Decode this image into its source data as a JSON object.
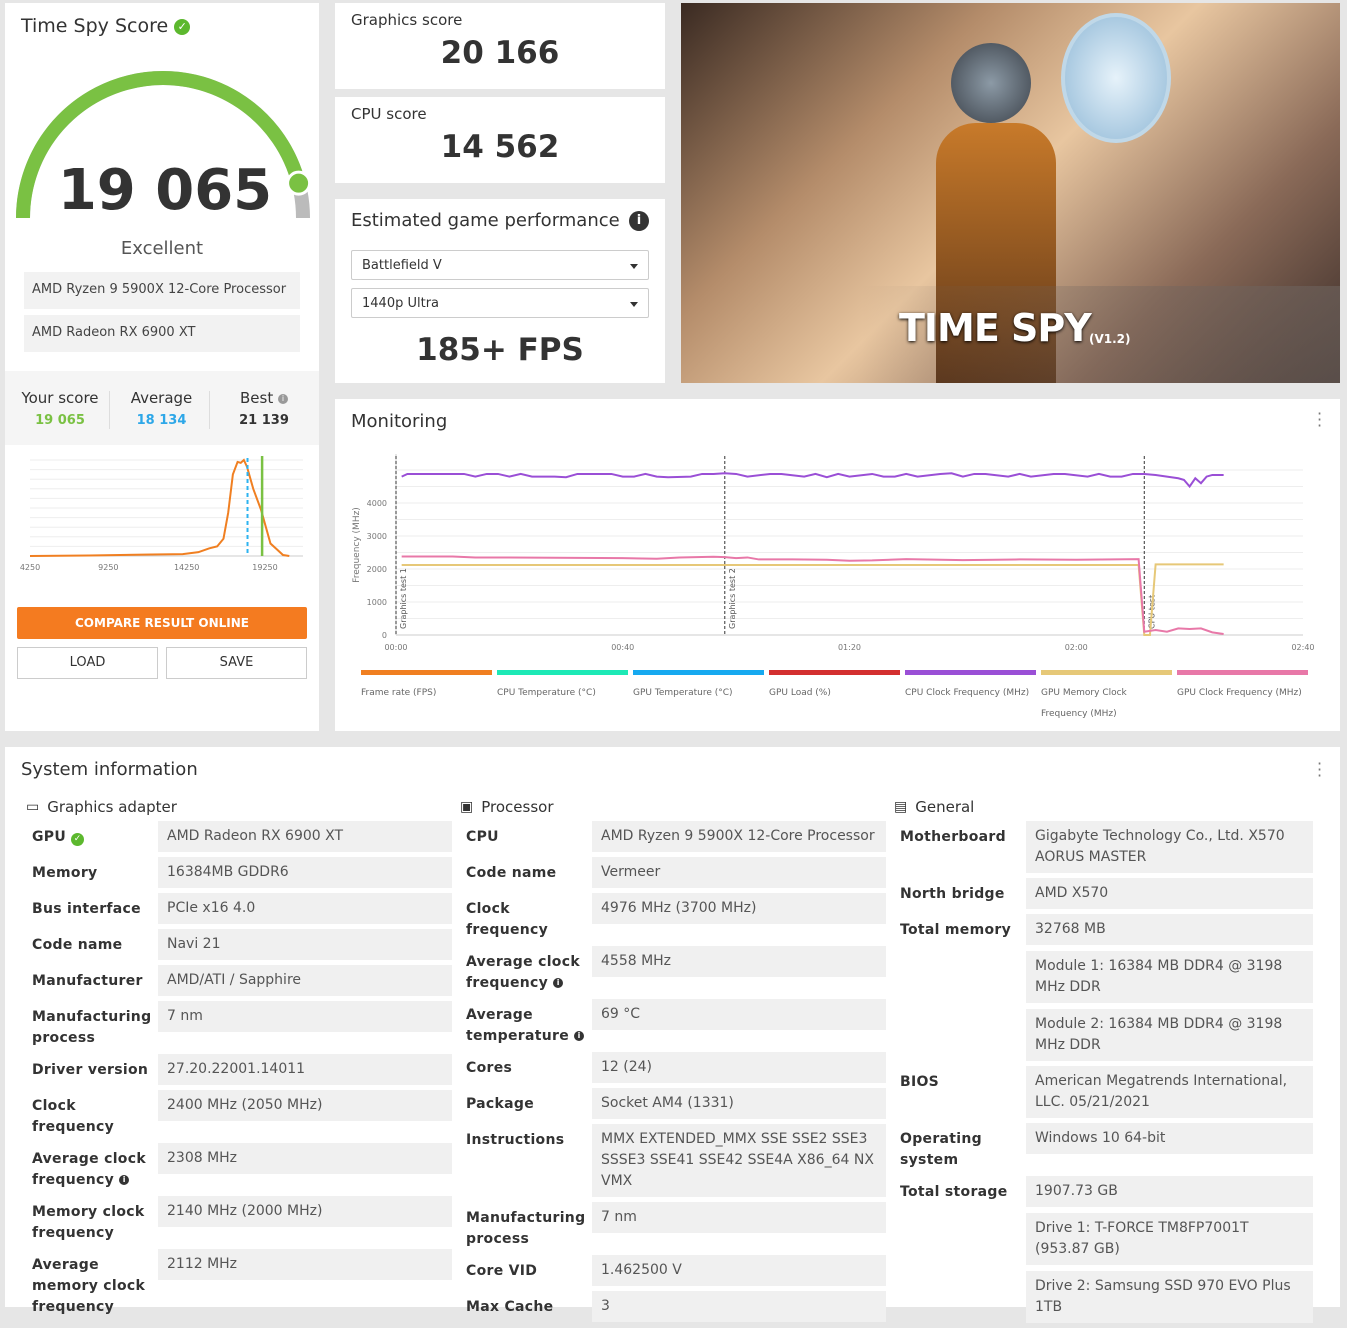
{
  "score": {
    "title": "Time Spy Score",
    "value": "19 065",
    "rating": "Excellent",
    "gauge_fraction": 0.92,
    "cpu": "AMD Ryzen 9 5900X 12-Core Processor",
    "gpu": "AMD Radeon RX 6900 XT",
    "your_label": "Your score",
    "your_value": "19 065",
    "avg_label": "Average",
    "avg_value": "18 134",
    "best_label": "Best",
    "best_value": "21 139",
    "compare": "COMPARE RESULT ONLINE",
    "load": "LOAD",
    "save": "SAVE"
  },
  "distribution": {
    "type": "line",
    "xticks": [
      "4250",
      "9250",
      "14250",
      "19250"
    ],
    "xlim": [
      4250,
      22000
    ],
    "x": [
      4250,
      8000,
      10000,
      12000,
      14000,
      15000,
      15700,
      16200,
      16600,
      16900,
      17200,
      17500,
      17700,
      17900,
      18100,
      18500,
      19000,
      19600,
      20000,
      20400,
      20800
    ],
    "y": [
      0,
      0.005,
      0.01,
      0.015,
      0.02,
      0.04,
      0.08,
      0.1,
      0.18,
      0.45,
      0.85,
      0.98,
      0.97,
      1.0,
      0.93,
      0.7,
      0.48,
      0.13,
      0.07,
      0.01,
      0.0
    ],
    "your_score": 19065,
    "average": 18134,
    "colors": {
      "curve": "#f07f21",
      "your": "#7ac143",
      "average": "#2db3f0"
    }
  },
  "graphics": {
    "label": "Graphics score",
    "value": "20 166"
  },
  "cpu": {
    "label": "CPU score",
    "value": "14 562"
  },
  "estimate": {
    "title": "Estimated game performance",
    "game": "Battlefield V",
    "preset": "1440p Ultra",
    "fps": "185+ FPS"
  },
  "banner": {
    "title": "TIME SPY",
    "version": "(V1.2)"
  },
  "monitoring": {
    "title": "Monitoring",
    "chart_data": {
      "type": "line",
      "ylabel": "Frequency (MHz)",
      "yticks": [
        0,
        1000,
        2000,
        3000,
        4000
      ],
      "ylim": [
        0,
        5000
      ],
      "xlim": [
        0,
        160
      ],
      "xticks": [
        "00:00",
        "00:40",
        "01:20",
        "02:00",
        "02:40"
      ],
      "markers": [
        {
          "t": 0,
          "label": "Graphics test 1"
        },
        {
          "t": 58,
          "label": "Graphics test 2"
        },
        {
          "t": 132,
          "label": "CPU test"
        }
      ],
      "series": [
        {
          "name": "CPU Clock Frequency (MHz)",
          "color": "#9a4fd6",
          "x": [
            1,
            2,
            6,
            12,
            14,
            16,
            18,
            20,
            22,
            24,
            28,
            30,
            32,
            34,
            38,
            40,
            42,
            44,
            46,
            48,
            52,
            54,
            56,
            58,
            60,
            62,
            66,
            68,
            72,
            74,
            76,
            78,
            80,
            84,
            86,
            88,
            90,
            92,
            96,
            98,
            100,
            102,
            104,
            108,
            110,
            112,
            116,
            118,
            122,
            124,
            126,
            128,
            130,
            132,
            134,
            136,
            138,
            139,
            140,
            141,
            142,
            143,
            144,
            146
          ],
          "y": [
            4800,
            4880,
            4880,
            4880,
            4800,
            4880,
            4880,
            4800,
            4880,
            4800,
            4800,
            4780,
            4880,
            4880,
            4880,
            4800,
            4800,
            4880,
            4800,
            4780,
            4800,
            4880,
            4880,
            4900,
            4880,
            4800,
            4880,
            4880,
            4800,
            4880,
            4780,
            4880,
            4800,
            4880,
            4800,
            4800,
            4880,
            4800,
            4880,
            4900,
            4800,
            4880,
            4880,
            4800,
            4880,
            4800,
            4880,
            4880,
            4800,
            4880,
            4800,
            4800,
            4880,
            4880,
            4850,
            4800,
            4750,
            4700,
            4500,
            4750,
            4600,
            4800,
            4850,
            4850
          ]
        },
        {
          "name": "GPU Memory Clock Frequency (MHz)",
          "color": "#e6c878",
          "x": [
            1,
            131,
            132,
            133,
            134,
            146
          ],
          "y": [
            2120,
            2120,
            0,
            0,
            2140,
            2140
          ]
        },
        {
          "name": "GPU Clock Frequency (MHz)",
          "color": "#e878a8",
          "x": [
            1,
            10,
            14,
            20,
            40,
            46,
            50,
            56,
            58,
            60,
            62,
            64,
            70,
            76,
            80,
            84,
            90,
            100,
            110,
            120,
            131,
            132,
            134,
            136,
            138,
            140,
            142,
            144,
            146
          ],
          "y": [
            2380,
            2380,
            2350,
            2350,
            2330,
            2310,
            2350,
            2370,
            2360,
            2330,
            2350,
            2290,
            2290,
            2280,
            2250,
            2260,
            2300,
            2270,
            2290,
            2280,
            2300,
            100,
            150,
            100,
            200,
            180,
            200,
            80,
            30
          ]
        }
      ]
    },
    "legend": [
      {
        "name": "Frame rate (FPS)",
        "color": "#f07f21"
      },
      {
        "name": "CPU Temperature (°C)",
        "color": "#1de9b6"
      },
      {
        "name": "GPU Temperature (°C)",
        "color": "#16a9f0"
      },
      {
        "name": "GPU Load (%)",
        "color": "#d32f2f"
      },
      {
        "name": "CPU Clock Frequency (MHz)",
        "color": "#9a4fd6"
      },
      {
        "name": "GPU Memory Clock Frequency (MHz)",
        "color": "#e6c878"
      },
      {
        "name": "GPU Clock Frequency (MHz)",
        "color": "#e878a8"
      }
    ]
  },
  "sysinfo": {
    "title": "System information",
    "graphics": {
      "title": "Graphics adapter",
      "rows": [
        {
          "k": "GPU",
          "v": [
            "AMD Radeon RX 6900 XT"
          ]
        },
        {
          "k": "Memory",
          "v": [
            "16384MB GDDR6"
          ]
        },
        {
          "k": "Bus interface",
          "v": [
            "PCIe x16 4.0"
          ]
        },
        {
          "k": "Code name",
          "v": [
            "Navi 21"
          ]
        },
        {
          "k": "Manufacturer",
          "v": [
            "AMD/ATI / Sapphire"
          ]
        },
        {
          "k": "Manufacturing process",
          "v": [
            "7 nm"
          ]
        },
        {
          "k": "Driver version",
          "v": [
            "27.20.22001.14011"
          ]
        },
        {
          "k": "Clock frequency",
          "v": [
            "2400 MHz (2050 MHz)"
          ]
        },
        {
          "k": "Average clock frequency",
          "v": [
            "2308 MHz"
          ]
        },
        {
          "k": "Memory clock frequency",
          "v": [
            "2140 MHz (2000 MHz)"
          ]
        },
        {
          "k": "Average memory clock frequency",
          "v": [
            "2112 MHz"
          ]
        }
      ]
    },
    "processor": {
      "title": "Processor",
      "rows": [
        {
          "k": "CPU",
          "v": [
            "AMD Ryzen 9 5900X 12-Core Processor"
          ]
        },
        {
          "k": "Code name",
          "v": [
            "Vermeer"
          ]
        },
        {
          "k": "Clock frequency",
          "v": [
            "4976 MHz (3700 MHz)"
          ]
        },
        {
          "k": "Average clock frequency",
          "v": [
            "4558 MHz"
          ]
        },
        {
          "k": "Average temperature",
          "v": [
            "69 °C"
          ]
        },
        {
          "k": "Cores",
          "v": [
            "12 (24)"
          ]
        },
        {
          "k": "Package",
          "v": [
            "Socket AM4 (1331)"
          ]
        },
        {
          "k": "Instructions",
          "v": [
            "MMX EXTENDED_MMX SSE SSE2 SSE3 SSSE3 SSE41 SSE42 SSE4A X86_64 NX VMX"
          ]
        },
        {
          "k": "Manufacturing process",
          "v": [
            "7 nm"
          ]
        },
        {
          "k": "Core VID",
          "v": [
            "1.462500 V"
          ]
        },
        {
          "k": "Max Cache",
          "v": [
            "3"
          ]
        }
      ]
    },
    "general": {
      "title": "General",
      "rows": [
        {
          "k": "Motherboard",
          "v": [
            "Gigabyte Technology Co., Ltd. X570 AORUS MASTER"
          ]
        },
        {
          "k": "North bridge",
          "v": [
            "AMD X570"
          ]
        },
        {
          "k": "Total memory",
          "v": [
            "32768 MB",
            "Module 1: 16384 MB DDR4 @ 3198 MHz DDR",
            "Module 2: 16384 MB DDR4 @ 3198 MHz DDR"
          ]
        },
        {
          "k": "BIOS",
          "v": [
            "American Megatrends International, LLC. 05/21/2021"
          ]
        },
        {
          "k": "Operating system",
          "v": [
            "Windows 10 64-bit"
          ]
        },
        {
          "k": "Total storage",
          "v": [
            "1907.73 GB",
            "Drive 1: T-FORCE TM8FP7001T (953.87 GB)",
            "Drive 2: Samsung SSD 970 EVO Plus 1TB"
          ]
        }
      ]
    }
  }
}
